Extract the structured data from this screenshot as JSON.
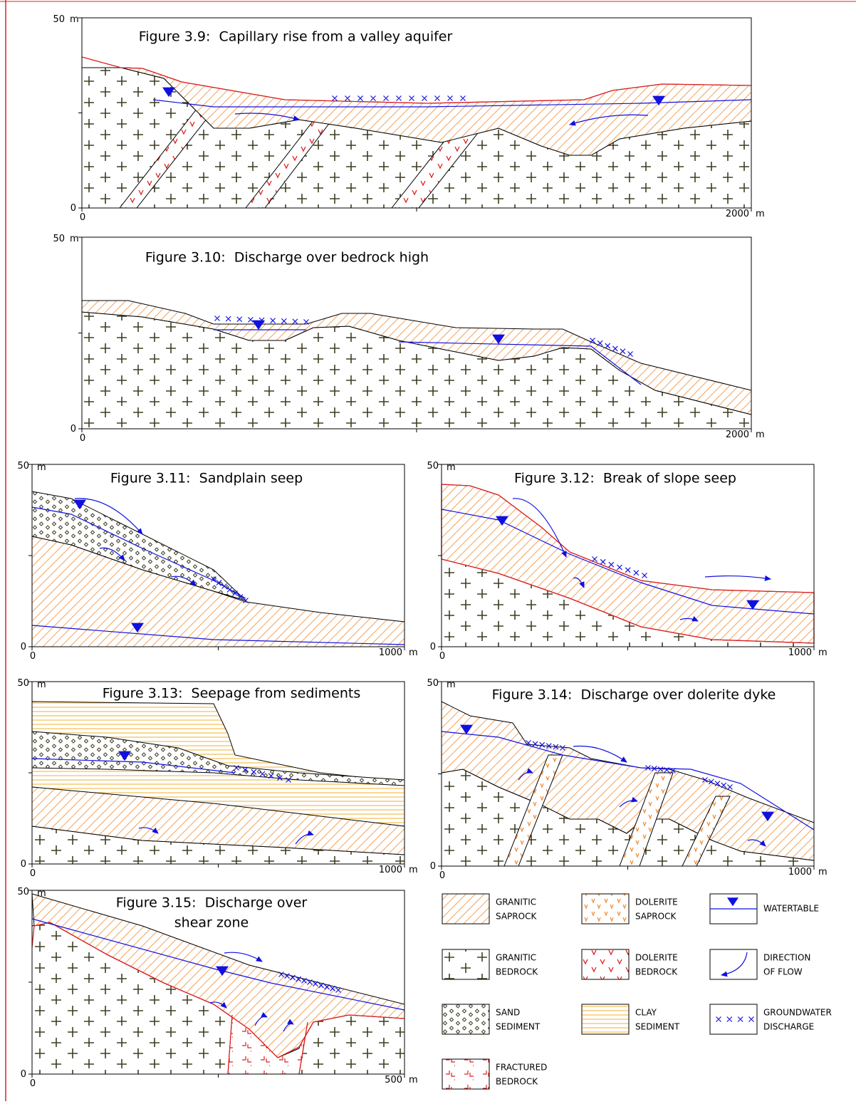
{
  "figures": [
    {
      "title": [
        "Figure 3.9:  Capillary rise from a valley aquifer"
      ],
      "y_top": "50",
      "y_unit": "m",
      "y_zero": "0",
      "x_zero": "0",
      "x_end": "2000",
      "x_unit": "m"
    },
    {
      "title": [
        "Figure 3.10:  Discharge over bedrock high"
      ],
      "y_top": "50",
      "y_unit": "m",
      "y_zero": "0",
      "x_zero": "0",
      "x_end": "2000",
      "x_unit": "m"
    },
    {
      "title": [
        "Figure 3.11:  Sandplain seep"
      ],
      "y_top": "50",
      "y_unit": "m",
      "y_zero": "0",
      "x_zero": "0",
      "x_end": "1000",
      "x_unit": "m"
    },
    {
      "title": [
        "Figure 3.12:  Break of slope seep"
      ],
      "y_top": "50",
      "y_unit": "m",
      "y_zero": "0",
      "x_zero": "0",
      "x_end": "1000",
      "x_unit": "m"
    },
    {
      "title": [
        "Figure 3.13:  Seepage from sediments"
      ],
      "y_top": "50",
      "y_unit": "m",
      "y_zero": "0",
      "x_zero": "0",
      "x_end": "1000",
      "x_unit": "m"
    },
    {
      "title": [
        "Figure 3.14:  Discharge over dolerite dyke"
      ],
      "y_top": "50",
      "y_unit": "m",
      "y_zero": "0",
      "x_zero": "0",
      "x_end": "1000",
      "x_unit": "m"
    },
    {
      "title": [
        "Figure 3.15:  Discharge over",
        "shear zone"
      ],
      "y_top": "50",
      "y_unit": "m",
      "y_zero": "0",
      "x_zero": "0",
      "x_end": "500",
      "x_unit": "m"
    }
  ],
  "legend": [
    {
      "label": [
        "GRANITIC",
        "SAPROCK"
      ]
    },
    {
      "label": [
        "DOLERITE",
        "SAPROCK"
      ]
    },
    {
      "label": [
        "WATERTABLE"
      ]
    },
    {
      "label": [
        "GRANITIC",
        "BEDROCK"
      ]
    },
    {
      "label": [
        "DOLERITE",
        "BEDROCK"
      ]
    },
    {
      "label": [
        "DIRECTION",
        "OF FLOW"
      ]
    },
    {
      "label": [
        "SAND",
        "SEDIMENT"
      ]
    },
    {
      "label": [
        "CLAY",
        "SEDIMENT"
      ]
    },
    {
      "label": [
        "GROUNDWATER",
        "DISCHARGE"
      ]
    },
    {
      "label": [
        "FRACTURED",
        "BEDROCK"
      ]
    }
  ]
}
